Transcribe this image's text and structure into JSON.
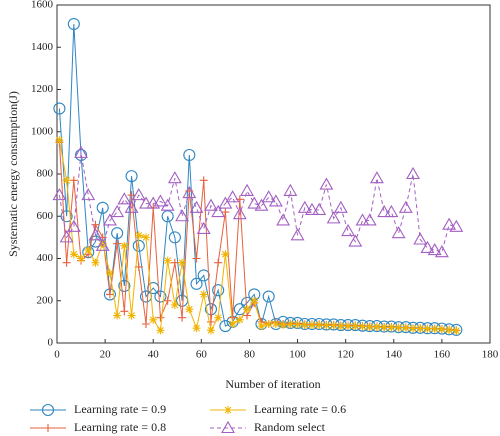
{
  "chart_data": {
    "type": "line",
    "x_label": "Number of iteration",
    "y_label": "Systematic energy consumption(J)",
    "x": [
      1,
      4,
      7,
      10,
      13,
      16,
      19,
      22,
      25,
      28,
      31,
      34,
      37,
      40,
      43,
      46,
      49,
      52,
      55,
      58,
      61,
      64,
      67,
      70,
      73,
      76,
      79,
      82,
      85,
      88,
      91,
      94,
      97,
      100,
      103,
      106,
      109,
      112,
      115,
      118,
      121,
      124,
      127,
      130,
      133,
      136,
      139,
      142,
      145,
      148,
      151,
      154,
      157,
      160,
      163,
      166
    ],
    "series": [
      {
        "name": "Learning rate = 0.9",
        "color": "#2e86c1",
        "marker": "circle",
        "dashed": false,
        "values": [
          1110,
          600,
          1510,
          890,
          430,
          480,
          640,
          230,
          520,
          270,
          790,
          460,
          220,
          260,
          220,
          600,
          500,
          200,
          890,
          280,
          320,
          160,
          250,
          80,
          100,
          160,
          190,
          230,
          90,
          220,
          90,
          100,
          95,
          95,
          90,
          90,
          90,
          88,
          88,
          85,
          85,
          85,
          82,
          80,
          80,
          78,
          78,
          75,
          75,
          72,
          72,
          70,
          70,
          68,
          65,
          62
        ]
      },
      {
        "name": "Learning rate = 0.8",
        "color": "#e8603c",
        "marker": "plus",
        "dashed": false,
        "values": [
          950,
          380,
          770,
          390,
          420,
          560,
          500,
          230,
          470,
          150,
          700,
          360,
          90,
          640,
          120,
          200,
          380,
          120,
          720,
          400,
          770,
          100,
          380,
          620,
          120,
          680,
          130,
          190,
          100,
          90,
          100,
          90,
          92,
          92,
          88,
          88,
          88,
          86,
          86,
          83,
          83,
          83,
          80,
          78,
          78,
          76,
          76,
          73,
          73,
          70,
          70,
          68,
          68,
          66,
          63,
          60
        ]
      },
      {
        "name": "Learning rate = 0.6",
        "color": "#f0b400",
        "marker": "star",
        "dashed": false,
        "values": [
          960,
          770,
          420,
          400,
          440,
          380,
          470,
          330,
          130,
          460,
          130,
          510,
          500,
          110,
          60,
          390,
          180,
          380,
          160,
          70,
          230,
          60,
          120,
          420,
          90,
          110,
          160,
          200,
          80,
          90,
          90,
          85,
          88,
          88,
          85,
          85,
          85,
          83,
          83,
          80,
          80,
          80,
          78,
          76,
          76,
          74,
          74,
          72,
          72,
          69,
          69,
          67,
          67,
          65,
          62,
          58
        ]
      },
      {
        "name": "Random select",
        "color": "#a35fc2",
        "marker": "triangle",
        "dashed": true,
        "values": [
          700,
          500,
          550,
          900,
          700,
          510,
          460,
          580,
          620,
          680,
          640,
          700,
          660,
          660,
          670,
          650,
          780,
          600,
          710,
          640,
          540,
          650,
          620,
          660,
          690,
          610,
          720,
          660,
          650,
          690,
          670,
          580,
          720,
          510,
          640,
          630,
          630,
          750,
          590,
          640,
          530,
          480,
          580,
          580,
          780,
          620,
          620,
          520,
          640,
          800,
          490,
          450,
          440,
          430,
          560,
          550
        ]
      }
    ],
    "xlim": [
      0,
      180
    ],
    "xticks": [
      0,
      20,
      40,
      60,
      80,
      100,
      120,
      140,
      160,
      180
    ],
    "ylim": [
      0,
      1600
    ],
    "yticks": [
      0,
      200,
      400,
      600,
      800,
      1000,
      1200,
      1400,
      1600
    ]
  }
}
